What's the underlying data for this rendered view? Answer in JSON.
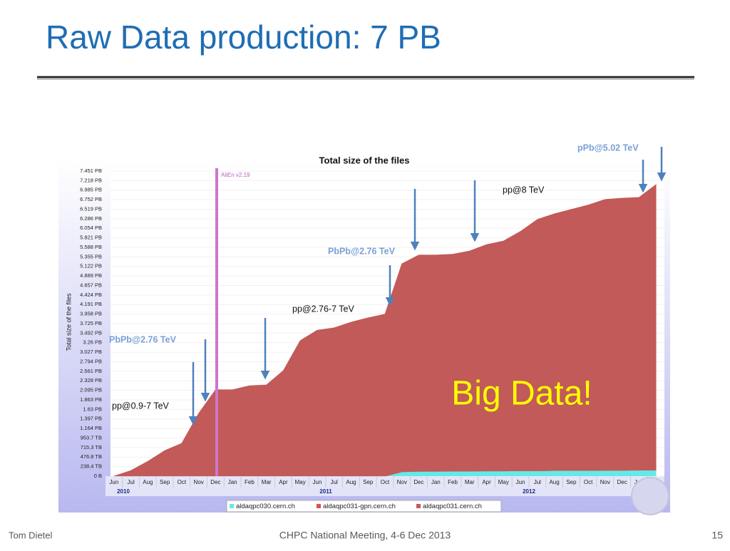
{
  "slide": {
    "title": "Raw Data production: 7 PB",
    "footer_left": "Tom Dietel",
    "footer_center": "CHPC National Meeting, 4-6 Dec 2013",
    "page_number": "15",
    "callout": "Big Data!",
    "annotations": [
      "pPb@5.02 TeV",
      "pp@8 TeV",
      "PbPb@2.76 TeV",
      "pp@2.76-7 TeV",
      "PbPb@2.76 TeV",
      "pp@0.9-7 TeV"
    ]
  },
  "chart_data": {
    "type": "area",
    "stacked": true,
    "title": "Total size of the files",
    "y_label": "Total size of the files",
    "marker_label": "AliEn v2.19",
    "categories": [
      "Jun",
      "Jul",
      "Aug",
      "Sep",
      "Oct",
      "Nov",
      "Dec",
      "Jan",
      "Feb",
      "Mar",
      "Apr",
      "May",
      "Jun",
      "Jul",
      "Aug",
      "Sep",
      "Oct",
      "Nov",
      "Dec",
      "Jan",
      "Feb",
      "Mar",
      "Apr",
      "May",
      "Jun",
      "Jul",
      "Aug",
      "Sep",
      "Oct",
      "Nov",
      "Dec",
      "Jan",
      "Feb"
    ],
    "year_labels": [
      "2010",
      "2011",
      "2012",
      "2013"
    ],
    "series": [
      {
        "name": "aldaqpc030.cern.ch",
        "color": "#66e8e8",
        "values": [
          0,
          0,
          0,
          0,
          0,
          0,
          0,
          0,
          0,
          0,
          0,
          0,
          0,
          0,
          0,
          0,
          0,
          110,
          120,
          120,
          125,
          125,
          130,
          130,
          135,
          135,
          140,
          140,
          140,
          145,
          145,
          150,
          150
        ]
      },
      {
        "name": "aldaqpc031-gpn.cern.ch",
        "color": "#e05050",
        "values": [
          0,
          0,
          0,
          0,
          0,
          0,
          0,
          0,
          0,
          0,
          0,
          0,
          0,
          0,
          0,
          0,
          0,
          0,
          0,
          0,
          0,
          0,
          0,
          0,
          0,
          0,
          0,
          0,
          0,
          0,
          0,
          0,
          0
        ]
      },
      {
        "name": "aldaqpc031.cern.ch",
        "color": "#c15a58",
        "values": [
          0,
          140,
          370,
          640,
          820,
          1570,
          2160,
          2160,
          2260,
          2280,
          2640,
          3390,
          3650,
          3710,
          3850,
          3960,
          4050,
          5200,
          5410,
          5410,
          5425,
          5505,
          5660,
          5750,
          5985,
          6285,
          6420,
          6530,
          6640,
          6775,
          6805,
          6820,
          7140
        ]
      }
    ],
    "ylim": [
      0,
      7700
    ],
    "yticks": [
      {
        "value": 0,
        "label": "0 B"
      },
      {
        "value": 238.4,
        "label": "238.4 TB"
      },
      {
        "value": 476.8,
        "label": "476.8 TB"
      },
      {
        "value": 715.3,
        "label": "715.3 TB"
      },
      {
        "value": 953.7,
        "label": "953.7 TB"
      },
      {
        "value": 1192.1,
        "label": "1.164 PB"
      },
      {
        "value": 1430.5,
        "label": "1.397 PB"
      },
      {
        "value": 1668.9,
        "label": "1.63 PB"
      },
      {
        "value": 1907.4,
        "label": "1.863 PB"
      },
      {
        "value": 2145.8,
        "label": "2.095 PB"
      },
      {
        "value": 2384.2,
        "label": "2.328 PB"
      },
      {
        "value": 2622.6,
        "label": "2.561 PB"
      },
      {
        "value": 2861.0,
        "label": "2.794 PB"
      },
      {
        "value": 3099.5,
        "label": "3.027 PB"
      },
      {
        "value": 3337.9,
        "label": "3.26 PB"
      },
      {
        "value": 3576.3,
        "label": "3.492 PB"
      },
      {
        "value": 3814.7,
        "label": "3.725 PB"
      },
      {
        "value": 4053.1,
        "label": "3.958 PB"
      },
      {
        "value": 4291.6,
        "label": "4.191 PB"
      },
      {
        "value": 4530.0,
        "label": "4.424 PB"
      },
      {
        "value": 4768.4,
        "label": "4.657 PB"
      },
      {
        "value": 5006.8,
        "label": "4.889 PB"
      },
      {
        "value": 5245.2,
        "label": "5.122 PB"
      },
      {
        "value": 5483.7,
        "label": "5.355 PB"
      },
      {
        "value": 5722.1,
        "label": "5.588 PB"
      },
      {
        "value": 5960.5,
        "label": "5.821 PB"
      },
      {
        "value": 6198.9,
        "label": "6.054 PB"
      },
      {
        "value": 6437.3,
        "label": "6.286 PB"
      },
      {
        "value": 6675.8,
        "label": "6.519 PB"
      },
      {
        "value": 6914.2,
        "label": "6.752 PB"
      },
      {
        "value": 7152.6,
        "label": "6.985 PB"
      },
      {
        "value": 7391.0,
        "label": "7.218 PB"
      },
      {
        "value": 7629.4,
        "label": "7.451 PB"
      }
    ],
    "grid": true
  }
}
